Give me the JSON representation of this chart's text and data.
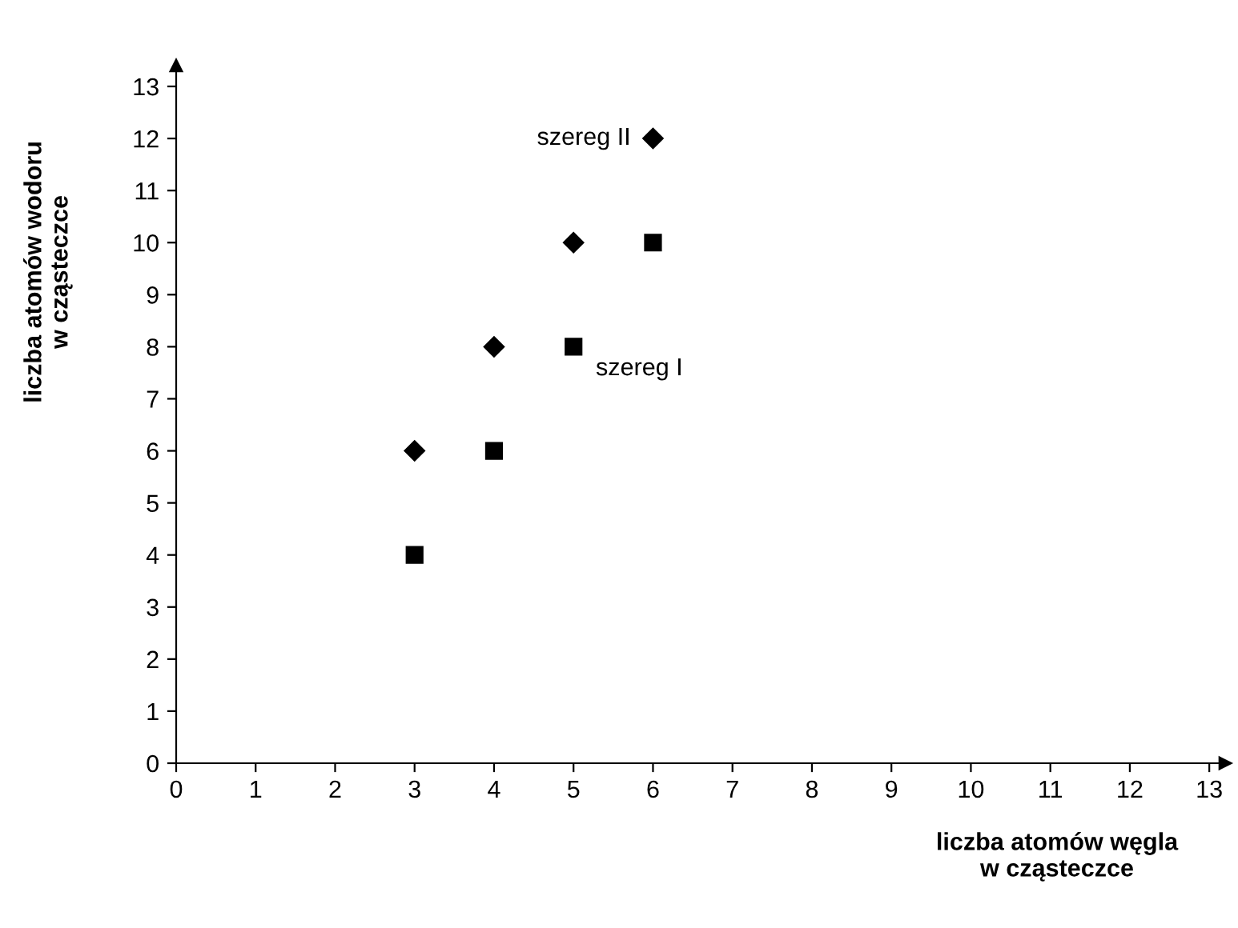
{
  "chart_data": {
    "type": "scatter",
    "xlabel": "liczba atomów węgla\nw cząsteczce",
    "ylabel": "liczba atomów wodoru\nw cząsteczce",
    "series": [
      {
        "name": "szereg I",
        "color": "#000000",
        "marker": "square",
        "x": [
          3,
          4,
          5,
          6
        ],
        "values": [
          4,
          6,
          8,
          10
        ]
      },
      {
        "name": "szereg II",
        "color": "#000000",
        "marker": "diamond",
        "x": [
          3,
          4,
          5,
          6
        ],
        "values": [
          6,
          8,
          10,
          12
        ]
      }
    ],
    "xlim": [
      0,
      13.2
    ],
    "ylim": [
      0,
      13.4
    ],
    "xticks": [
      0,
      1,
      2,
      3,
      4,
      5,
      6,
      7,
      8,
      9,
      10,
      11,
      12,
      13
    ],
    "yticks": [
      0,
      1,
      2,
      3,
      4,
      5,
      6,
      7,
      8,
      9,
      10,
      11,
      12,
      13
    ],
    "grid": false,
    "legend": false
  }
}
